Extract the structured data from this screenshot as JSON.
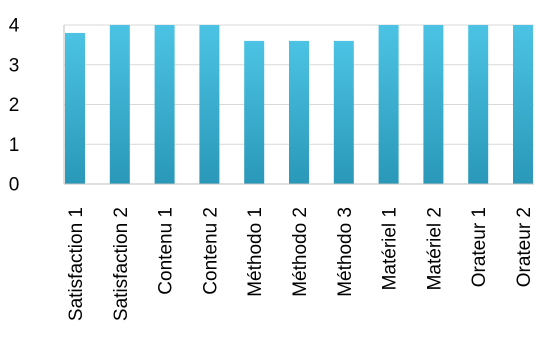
{
  "chart_data": {
    "type": "bar",
    "title": "",
    "xlabel": "",
    "ylabel": "",
    "categories": [
      "Satisfaction 1",
      "Satisfaction 2",
      "Contenu 1",
      "Contenu 2",
      "Méthodo 1",
      "Méthodo 2",
      "Méthodo 3",
      "Matériel 1",
      "Matériel 2",
      "Orateur 1",
      "Orateur 2"
    ],
    "values": [
      3.8,
      4.0,
      4.0,
      4.0,
      3.6,
      3.6,
      3.6,
      4.0,
      4.0,
      4.0,
      4.0
    ],
    "ylim": [
      0,
      4
    ],
    "yticks": [
      "0",
      "1",
      "2",
      "3",
      "4"
    ],
    "grid": true,
    "legend": "none",
    "colors": {
      "bar_top": "#4cc3e4",
      "bar_bottom": "#2a98b8",
      "grid": "#d9d9d9",
      "axis": "#bfbfbf"
    }
  }
}
